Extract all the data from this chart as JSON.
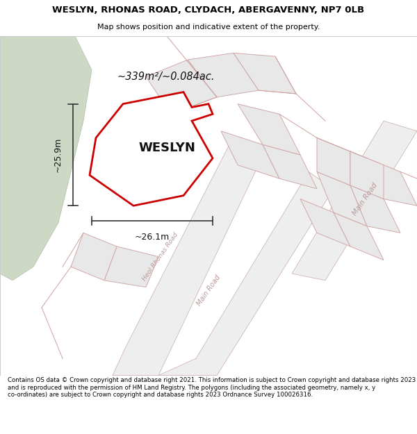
{
  "title_line1": "WESLYN, RHONAS ROAD, CLYDACH, ABERGAVENNY, NP7 0LB",
  "title_line2": "Map shows position and indicative extent of the property.",
  "area_label": "~339m²/~0.084ac.",
  "property_name": "WESLYN",
  "dim_horizontal": "~26.1m",
  "dim_vertical": "~25.9m",
  "footer_text": "Contains OS data © Crown copyright and database right 2021. This information is subject to Crown copyright and database rights 2023 and is reproduced with the permission of HM Land Registry. The polygons (including the associated geometry, namely x, y co-ordinates) are subject to Crown copyright and database rights 2023 Ordnance Survey 100026316.",
  "map_bg": "#ffffff",
  "property_fill": "#ffffff",
  "property_outline": "#cc0000",
  "plot_fill": "#e8e8e8",
  "plot_edge": "#d0a0a0",
  "road_fill": "#e8e8e8",
  "road_edge": "#c8a0a0",
  "green_fill": "#cdd8c5",
  "green_edge": "#b0c0a8",
  "road_label_color": "#c0a0a0",
  "dim_line_color": "#333333",
  "header_bg": "#ffffff",
  "footer_bg": "#ffffff"
}
